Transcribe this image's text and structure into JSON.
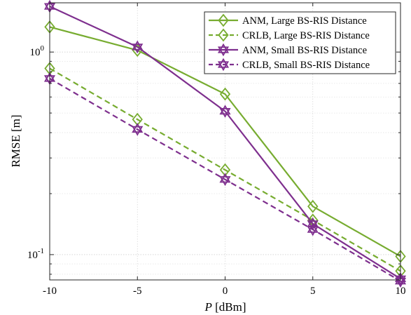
{
  "chart_data": {
    "type": "line",
    "xlabel_var": "P",
    "xlabel_unit": " [dBm]",
    "ylabel": "RMSE [m]",
    "xlim": [
      -10,
      10
    ],
    "ylim": [
      0.075,
      1.75
    ],
    "yscale": "log",
    "grid": true,
    "legend_position": "top-right",
    "x": [
      -10,
      -5,
      0,
      5,
      10
    ],
    "xtick_labels": [
      "-10",
      "-5",
      "0",
      "5",
      "10"
    ],
    "ytick_labels": [
      {
        "value": 1,
        "base": "10",
        "exp": "0"
      },
      {
        "value": 0.1,
        "base": "10",
        "exp": "-1"
      }
    ],
    "series": [
      {
        "name": "ANM, Large BS-RIS Distance",
        "values": [
          1.33,
          1.02,
          0.62,
          0.173,
          0.098
        ],
        "color": "#77ac30",
        "dash": "solid",
        "marker": "diamond"
      },
      {
        "name": "CRLB, Large BS-RIS Distance",
        "values": [
          0.83,
          0.465,
          0.262,
          0.148,
          0.083
        ],
        "color": "#77ac30",
        "dash": "dashed",
        "marker": "diamond"
      },
      {
        "name": "ANM, Small BS-RIS Distance",
        "values": [
          1.68,
          1.06,
          0.51,
          0.142,
          0.076
        ],
        "color": "#7e2f8e",
        "dash": "solid",
        "marker": "hexagram"
      },
      {
        "name": "CRLB, Small BS-RIS Distance",
        "values": [
          0.74,
          0.415,
          0.235,
          0.133,
          0.074
        ],
        "color": "#7e2f8e",
        "dash": "dashed",
        "marker": "hexagram"
      }
    ]
  }
}
